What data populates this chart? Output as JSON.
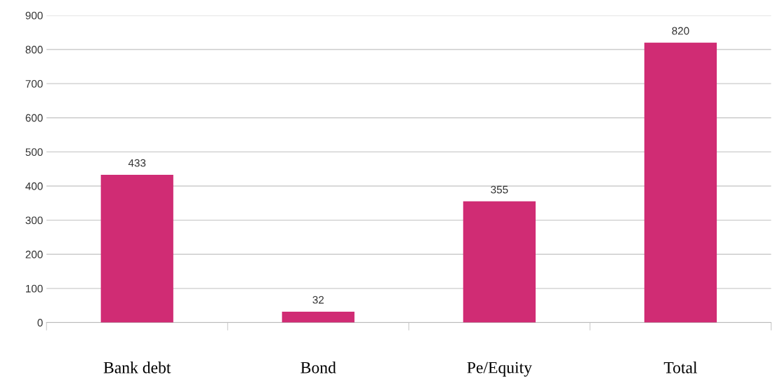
{
  "chart_data": {
    "type": "bar",
    "categories": [
      "Bank debt",
      "Bond",
      "Pe/Equity",
      "Total"
    ],
    "values": [
      433,
      32,
      355,
      820
    ],
    "color": "#d02c74",
    "ylim": [
      0,
      900
    ],
    "yticks": [
      0,
      100,
      200,
      300,
      400,
      500,
      600,
      700,
      800,
      900
    ],
    "grid": "y",
    "data_labels": true
  }
}
